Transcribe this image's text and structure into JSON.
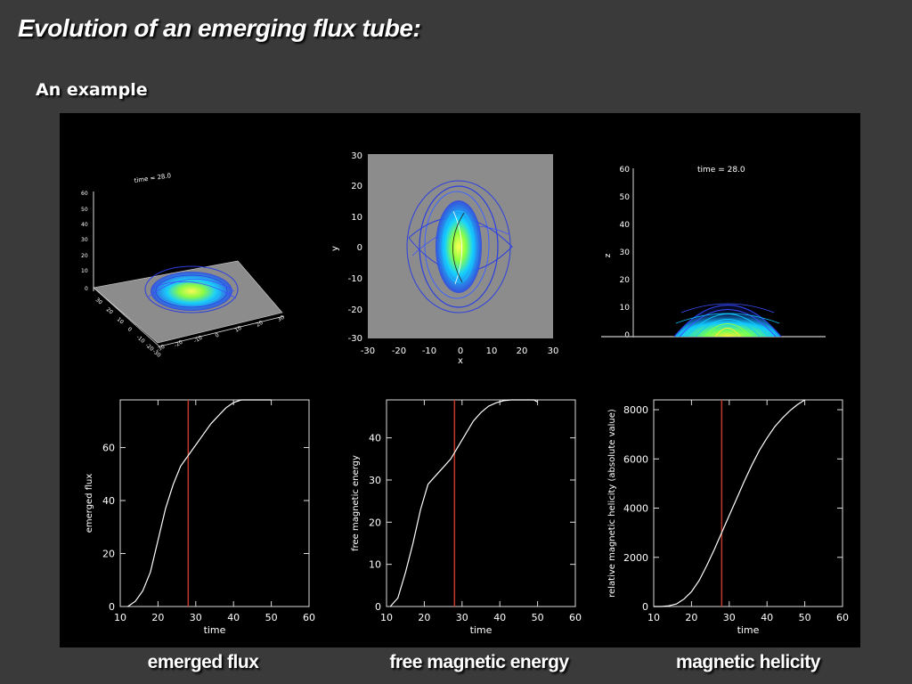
{
  "slide": {
    "title": "Evolution of an emerging flux tube:",
    "subtitle": "An example"
  },
  "renders": {
    "view3d": {
      "time_label": "time = 28.0",
      "z_ticks": [
        "60",
        "50",
        "40",
        "30",
        "20",
        "10",
        "0"
      ],
      "x_ticks": [
        "-30",
        "-20",
        "-10",
        "0",
        "10",
        "20",
        "30"
      ],
      "y_ticks": [
        "30",
        "20",
        "10",
        "0",
        "-10",
        "-20",
        "-30"
      ]
    },
    "top_view": {
      "xlabel": "x",
      "ylabel": "y",
      "x_ticks": [
        "-30",
        "-20",
        "-10",
        "0",
        "10",
        "20",
        "30"
      ],
      "y_ticks": [
        "30",
        "20",
        "10",
        "0",
        "-10",
        "-20",
        "-30"
      ]
    },
    "side_view": {
      "time_label": "time = 28.0",
      "ylabel": "z",
      "y_ticks": [
        "60",
        "50",
        "40",
        "30",
        "20",
        "10",
        "0"
      ]
    },
    "colors": {
      "field_outer": "#2b3fe0",
      "field_mid": "#10c8ff",
      "field_core": "#b6ff3a",
      "plane": "#8c8c8c"
    }
  },
  "chart_data": [
    {
      "type": "line",
      "xlabel": "time",
      "ylabel": "emerged flux",
      "xlim": [
        10,
        60
      ],
      "ylim": [
        0,
        78
      ],
      "x_ticks": [
        10,
        20,
        30,
        40,
        50,
        60
      ],
      "y_ticks": [
        0,
        20,
        40,
        60
      ],
      "x": [
        12,
        14,
        16,
        18,
        20,
        22,
        24,
        26,
        28,
        30,
        32,
        34,
        36,
        38,
        40,
        42,
        44,
        46,
        48,
        50
      ],
      "values": [
        0,
        2,
        6,
        13,
        25,
        37,
        46,
        53,
        57,
        61,
        65,
        69,
        72,
        75,
        77,
        78,
        78,
        78,
        78,
        78
      ],
      "marker_time": 28,
      "caption": "emerged flux",
      "colors": {
        "curve": "#ffffff",
        "marker": "#c0392b"
      }
    },
    {
      "type": "line",
      "xlabel": "time",
      "ylabel": "free magnetic energy",
      "xlim": [
        10,
        60
      ],
      "ylim": [
        0,
        49
      ],
      "x_ticks": [
        10,
        20,
        30,
        40,
        50,
        60
      ],
      "y_ticks": [
        0,
        10,
        20,
        30,
        40
      ],
      "x": [
        11,
        13,
        15,
        17,
        19,
        21,
        23,
        25,
        27,
        29,
        31,
        33,
        35,
        37,
        39,
        41,
        43,
        45,
        47,
        49,
        50
      ],
      "values": [
        0,
        2,
        8,
        15,
        23,
        29,
        31,
        33,
        35,
        38,
        41,
        44,
        46,
        47.5,
        48.3,
        48.8,
        49,
        49,
        49,
        49,
        48.5
      ],
      "marker_time": 28,
      "caption": "free magnetic energy",
      "colors": {
        "curve": "#ffffff",
        "marker": "#c0392b"
      }
    },
    {
      "type": "line",
      "xlabel": "time",
      "ylabel": "relative magnetic helicity (absolute value)",
      "xlim": [
        10,
        60
      ],
      "ylim": [
        0,
        8400
      ],
      "x_ticks": [
        10,
        20,
        30,
        40,
        50,
        60
      ],
      "y_ticks": [
        0,
        2000,
        4000,
        6000,
        8000
      ],
      "x": [
        10,
        12,
        14,
        16,
        18,
        20,
        22,
        24,
        26,
        28,
        30,
        32,
        34,
        36,
        38,
        40,
        42,
        44,
        46,
        48,
        50
      ],
      "values": [
        0,
        0,
        30,
        100,
        300,
        600,
        1050,
        1650,
        2300,
        3000,
        3700,
        4400,
        5100,
        5750,
        6350,
        6850,
        7300,
        7650,
        7950,
        8200,
        8400
      ],
      "marker_time": 28,
      "caption": "magnetic helicity",
      "colors": {
        "curve": "#ffffff",
        "marker": "#c0392b"
      }
    }
  ]
}
